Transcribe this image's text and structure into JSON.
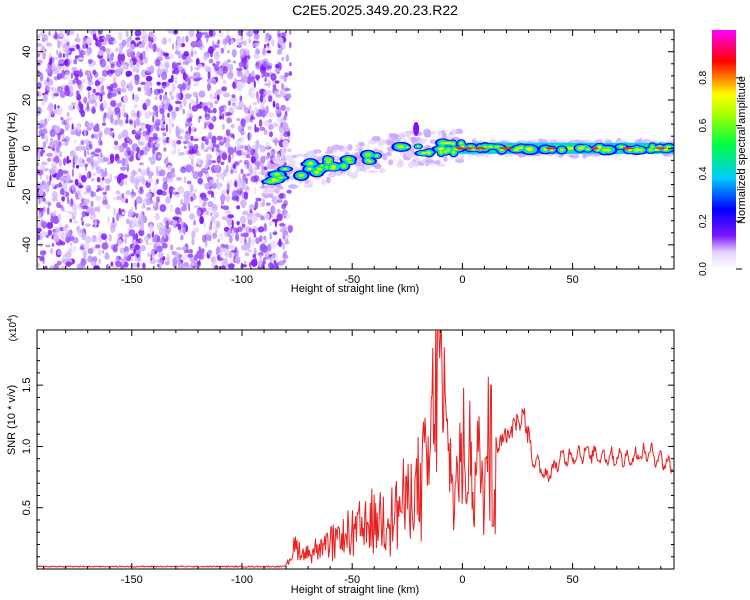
{
  "title": "C2E5.2025.349.20.23.R22",
  "chart_data": [
    {
      "type": "heatmap",
      "xlabel": "Height of straight line (km)",
      "ylabel": "Frequency (Hz)",
      "xlim": [
        -193,
        96
      ],
      "ylim": [
        -50,
        49
      ],
      "xticks": [
        -150,
        -100,
        -50,
        0,
        50
      ],
      "yticks": [
        -40,
        -20,
        0,
        20,
        40
      ],
      "xtick_labels": [
        "-150",
        "-100",
        "-50",
        "0",
        "50"
      ],
      "ytick_labels": [
        "-40",
        "-20",
        "0",
        "20",
        "40"
      ],
      "colorbar": {
        "label": "Normalized spectral amplitude",
        "range": [
          0,
          1
        ],
        "ticks": [
          0.0,
          0.2,
          0.4,
          0.6,
          0.8
        ],
        "tick_labels": [
          "0.0",
          "0.2",
          "0.4",
          "0.6",
          "0.8"
        ],
        "colors": [
          "#ffffff",
          "#6a00ff",
          "#0000ff",
          "#00e5ff",
          "#00ff40",
          "#ffff00",
          "#ff0000",
          "#ff00ff"
        ]
      },
      "regions": [
        {
          "name": "noise",
          "x_range": [
            -193,
            -78
          ],
          "freq_range": [
            -50,
            49
          ],
          "amplitude": 0.1
        },
        {
          "name": "signal-band",
          "x_range": [
            -92,
            96
          ],
          "center_freq_start": -13,
          "center_freq_end": 0,
          "amplitude_peak": 0.8
        }
      ]
    },
    {
      "type": "line",
      "xlabel": "Height of straight line (km)",
      "ylabel": "SNR (10 * v/v)",
      "y_multiplier": "(x10^4)",
      "xlim": [
        -193,
        96
      ],
      "ylim": [
        0,
        1.95
      ],
      "xticks": [
        -150,
        -100,
        -50,
        0,
        50
      ],
      "yticks": [
        0.5,
        1.0,
        1.5
      ],
      "xtick_labels": [
        "-150",
        "-100",
        "-50",
        "0",
        "50"
      ],
      "ytick_labels": [
        "0.5",
        "1.0",
        "1.5"
      ],
      "color": "#e82020",
      "key_points": {
        "x": [
          -193,
          -80,
          -76,
          -72,
          -60,
          -45,
          -30,
          -20,
          -15,
          -11,
          -5,
          0,
          5,
          10,
          13,
          15,
          20,
          28,
          32,
          38,
          45,
          55,
          65,
          75,
          85,
          96
        ],
        "y": [
          0.02,
          0.02,
          0.22,
          0.15,
          0.22,
          0.4,
          0.55,
          0.75,
          1.05,
          1.95,
          0.8,
          1.0,
          1.05,
          0.85,
          1.5,
          1.0,
          1.1,
          1.25,
          0.9,
          0.75,
          0.9,
          0.95,
          0.92,
          0.9,
          0.95,
          0.83
        ]
      }
    }
  ]
}
